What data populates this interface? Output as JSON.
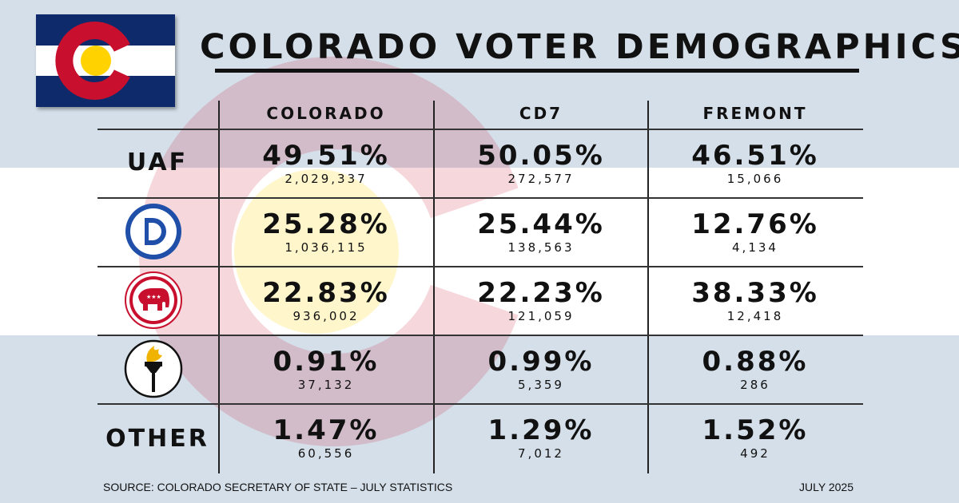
{
  "title": "COLORADO VOTER DEMOGRAPHICS",
  "columns": [
    "COLORADO",
    "CD7",
    "FREMONT"
  ],
  "rows": [
    {
      "label": "UAF",
      "icon": "uaf-text",
      "cells": [
        {
          "pct": "49.51%",
          "count": "2,029,337"
        },
        {
          "pct": "50.05%",
          "count": "272,577"
        },
        {
          "pct": "46.51%",
          "count": "15,066"
        }
      ]
    },
    {
      "label": "",
      "icon": "democratic-logo-icon",
      "cells": [
        {
          "pct": "25.28%",
          "count": "1,036,115"
        },
        {
          "pct": "25.44%",
          "count": "138,563"
        },
        {
          "pct": "12.76%",
          "count": "4,134"
        }
      ]
    },
    {
      "label": "",
      "icon": "republican-elephant-icon",
      "cells": [
        {
          "pct": "22.83%",
          "count": "936,002"
        },
        {
          "pct": "22.23%",
          "count": "121,059"
        },
        {
          "pct": "38.33%",
          "count": "12,418"
        }
      ]
    },
    {
      "label": "",
      "icon": "libertarian-torch-icon",
      "cells": [
        {
          "pct": "0.91%",
          "count": "37,132"
        },
        {
          "pct": "0.99%",
          "count": "5,359"
        },
        {
          "pct": "0.88%",
          "count": "286"
        }
      ]
    },
    {
      "label": "OTHER",
      "icon": "other-text",
      "cells": [
        {
          "pct": "1.47%",
          "count": "60,556"
        },
        {
          "pct": "1.29%",
          "count": "7,012"
        },
        {
          "pct": "1.52%",
          "count": "492"
        }
      ]
    }
  ],
  "footer": {
    "source": "SOURCE: COLORADO SECRETARY OF STATE – JULY STATISTICS",
    "date": "JULY 2025"
  },
  "colors": {
    "flag_blue": "#0f2a6b",
    "flag_red": "#c8102e",
    "flag_gold": "#ffd200",
    "bg_blue": "#d5dfe9",
    "dem_blue": "#1f4fa8",
    "rep_red": "#c8102e"
  }
}
